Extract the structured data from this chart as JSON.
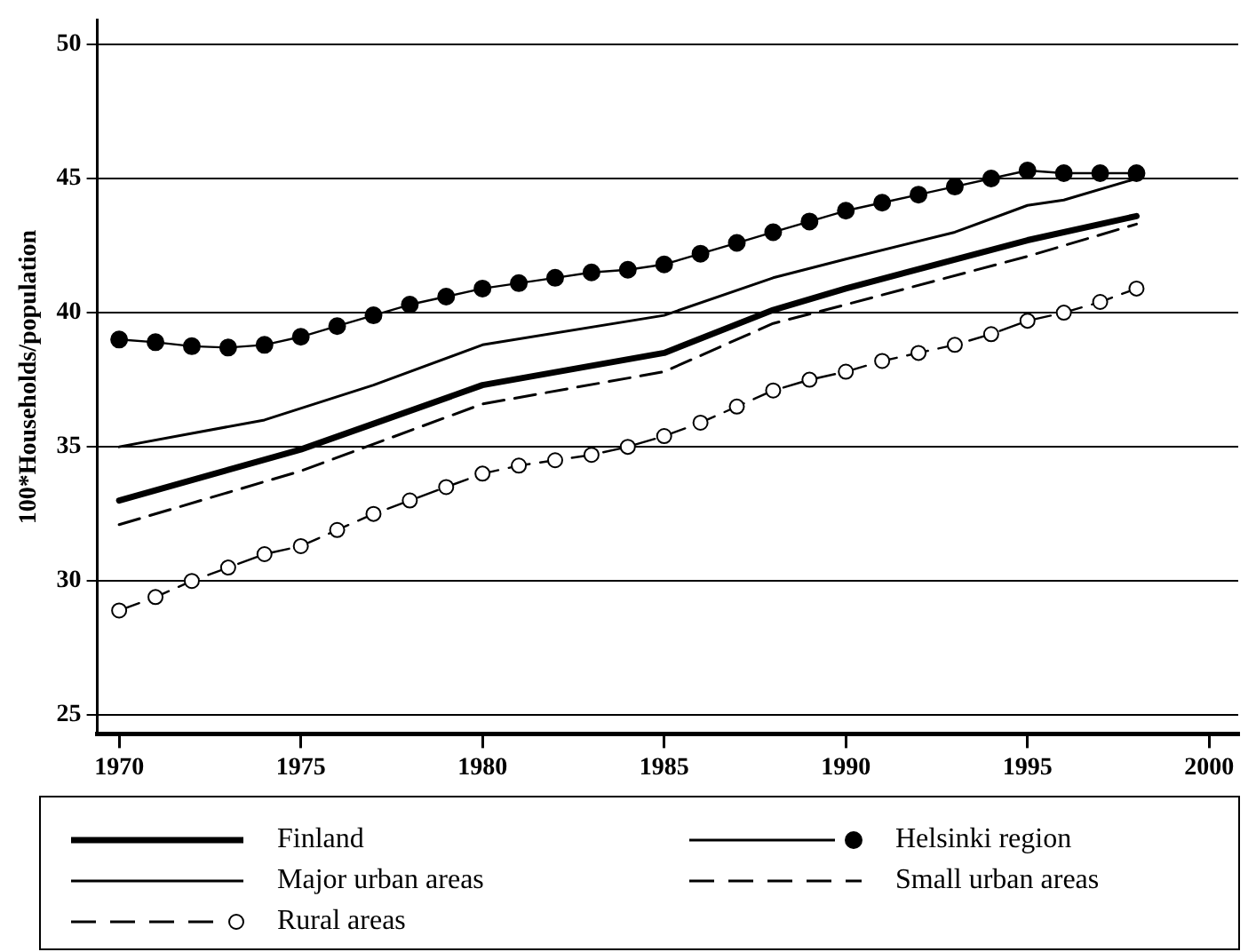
{
  "chart_data": {
    "type": "line",
    "ylabel": "100*Households/population",
    "xlim": [
      1969.4,
      2000.8
    ],
    "xticks": [
      1970,
      1975,
      1980,
      1985,
      1990,
      1995,
      2000
    ],
    "ylim": [
      24.3,
      50.9
    ],
    "yticks": [
      25,
      30,
      35,
      40,
      45,
      50
    ],
    "grid": "y",
    "legend": "bottom",
    "series": [
      {
        "name": "Finland",
        "color": "#000000",
        "line_style": "solid",
        "marker": "none",
        "x": [
          1970,
          1975,
          1980,
          1985,
          1988,
          1990,
          1995,
          1998
        ],
        "values": [
          33.0,
          34.9,
          37.3,
          38.5,
          40.1,
          40.9,
          42.7,
          43.6
        ]
      },
      {
        "name": "Major urban areas",
        "color": "#000000",
        "line_style": "solid",
        "marker": "none",
        "x": [
          1970,
          1972,
          1974,
          1977,
          1980,
          1985,
          1988,
          1990,
          1993,
          1995,
          1996,
          1998
        ],
        "values": [
          35.0,
          35.5,
          36.0,
          37.3,
          38.8,
          39.9,
          41.3,
          42.0,
          43.0,
          44.0,
          44.2,
          45.0
        ]
      },
      {
        "name": "Rural areas",
        "color": "#000000",
        "line_style": "dashed",
        "marker": "circle",
        "x": [
          1970,
          1971,
          1972,
          1973,
          1974,
          1975,
          1976,
          1977,
          1978,
          1979,
          1980,
          1981,
          1982,
          1983,
          1984,
          1985,
          1986,
          1987,
          1988,
          1989,
          1990,
          1991,
          1992,
          1993,
          1994,
          1995,
          1996,
          1997,
          1998
        ],
        "values": [
          28.9,
          29.4,
          30.0,
          30.5,
          31.0,
          31.3,
          31.9,
          32.5,
          33.0,
          33.5,
          34.0,
          34.3,
          34.5,
          34.7,
          35.0,
          35.4,
          35.9,
          36.5,
          37.1,
          37.5,
          37.8,
          38.2,
          38.5,
          38.8,
          39.2,
          39.7,
          40.0,
          40.4,
          40.9
        ]
      },
      {
        "name": "Helsinki region",
        "color": "#000000",
        "line_style": "solid",
        "marker": "circle",
        "x": [
          1970,
          1971,
          1972,
          1973,
          1974,
          1975,
          1976,
          1977,
          1978,
          1979,
          1980,
          1981,
          1982,
          1983,
          1984,
          1985,
          1986,
          1987,
          1988,
          1989,
          1990,
          1991,
          1992,
          1993,
          1994,
          1995,
          1996,
          1997,
          1998
        ],
        "values": [
          39.0,
          38.9,
          38.75,
          38.7,
          38.8,
          39.1,
          39.5,
          39.9,
          40.3,
          40.6,
          40.9,
          41.1,
          41.3,
          41.5,
          41.6,
          41.8,
          42.2,
          42.6,
          43.0,
          43.4,
          43.8,
          44.1,
          44.4,
          44.7,
          45.0,
          45.3,
          45.2,
          45.2,
          45.2
        ]
      },
      {
        "name": "Small urban areas",
        "color": "#000000",
        "line_style": "dashed",
        "marker": "none",
        "x": [
          1970,
          1975,
          1980,
          1985,
          1988,
          1990,
          1995,
          1998
        ],
        "values": [
          32.1,
          34.1,
          36.6,
          37.8,
          39.6,
          40.3,
          42.1,
          43.3
        ]
      }
    ]
  }
}
